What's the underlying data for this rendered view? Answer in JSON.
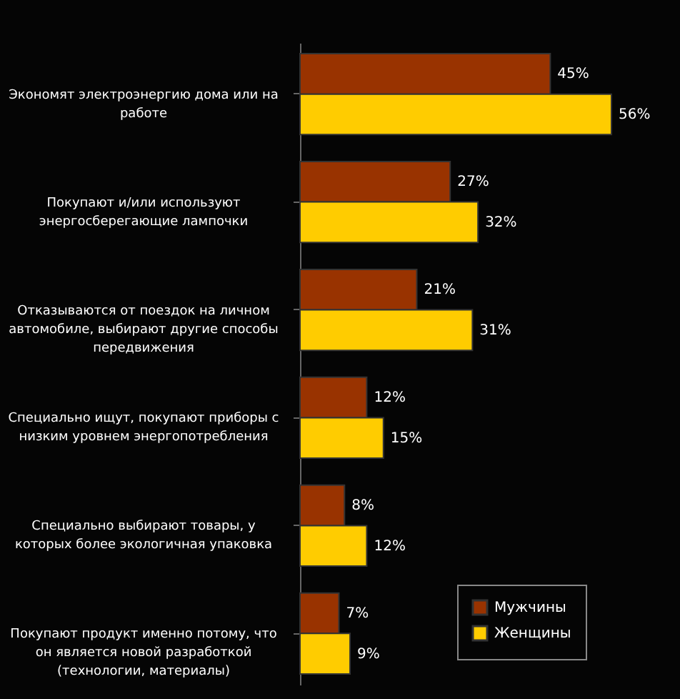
{
  "chart_data": {
    "type": "bar",
    "orientation": "horizontal",
    "categories": [
      "Экономят электроэнергию дома или на работе",
      "Покупают и/или используют энергосберегающие лампочки",
      "Отказываются от поездок на личном автомобиле, выбирают другие способы передвижения",
      "Специально ищут, покупают приборы с низким уровнем энергопотребления",
      "Специально выбирают товары, у которых более экологичная упаковка",
      "Покупают продукт именно потому, что он является новой разработкой (технологии, материалы)"
    ],
    "series": [
      {
        "name": "Мужчины",
        "color": "#993300",
        "values": [
          45,
          27,
          21,
          12,
          8,
          7
        ],
        "value_labels": [
          "45%",
          "27%",
          "21%",
          "12%",
          "8%",
          "7%"
        ]
      },
      {
        "name": "Женщины",
        "color": "#ffcc00",
        "values": [
          56,
          32,
          31,
          15,
          12,
          9
        ],
        "value_labels": [
          "56%",
          "32%",
          "31%",
          "15%",
          "12%",
          "9%"
        ]
      }
    ],
    "legend": "bottom right"
  }
}
